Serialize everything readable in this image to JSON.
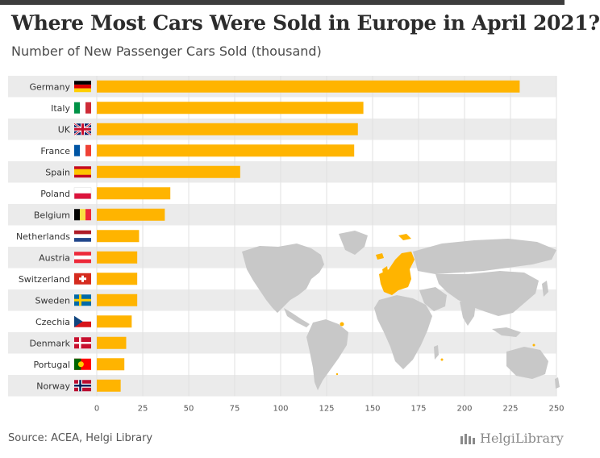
{
  "header": {
    "title": "Where Most Cars Were Sold in Europe in April 2021?",
    "subtitle": "Number of New Passenger Cars Sold (thousand)"
  },
  "footer": {
    "source": "Source: ACEA, Helgi Library",
    "brand": "HelgiLibrary"
  },
  "colors": {
    "bar": "#ffb400",
    "map_land": "#c8c8c8",
    "map_highlight": "#ffb400",
    "stripe": "#ebebeb"
  },
  "chart_data": {
    "type": "bar",
    "orientation": "horizontal",
    "categories": [
      "Germany",
      "Italy",
      "UK",
      "France",
      "Spain",
      "Poland",
      "Belgium",
      "Netherlands",
      "Austria",
      "Switzerland",
      "Sweden",
      "Czechia",
      "Denmark",
      "Portugal",
      "Norway"
    ],
    "flag_icons": [
      "flag-germany",
      "flag-italy",
      "flag-uk",
      "flag-france",
      "flag-spain",
      "flag-poland",
      "flag-belgium",
      "flag-netherlands",
      "flag-austria",
      "flag-switzerland",
      "flag-sweden",
      "flag-czechia",
      "flag-denmark",
      "flag-portugal",
      "flag-norway"
    ],
    "values": [
      230,
      145,
      142,
      140,
      78,
      40,
      37,
      23,
      22,
      22,
      22,
      19,
      16,
      15,
      13
    ],
    "xlim": [
      0,
      250
    ],
    "xticks": [
      "0",
      "25",
      "50",
      "75",
      "100",
      "125",
      "150",
      "175",
      "200",
      "225",
      "250"
    ],
    "grid": true
  }
}
